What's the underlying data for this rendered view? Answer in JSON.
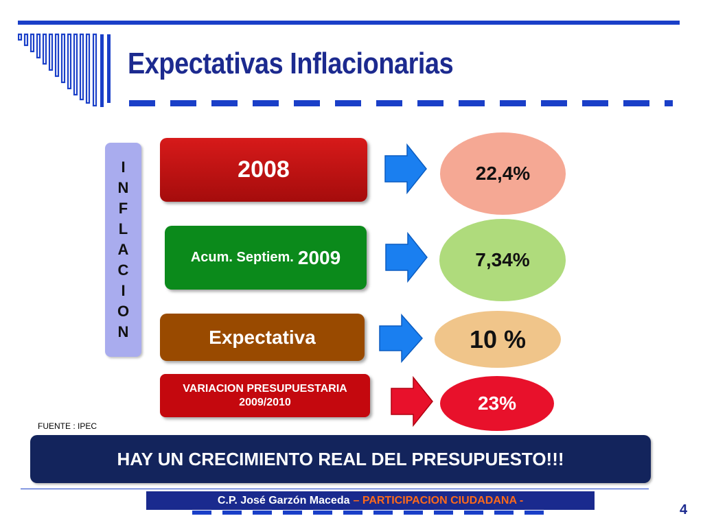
{
  "slide": {
    "title": "Expectativas Inflacionarias",
    "vertical_label": [
      "I",
      "N",
      "F",
      "L",
      "A",
      "C",
      "I",
      "O",
      "N"
    ],
    "rows": [
      {
        "label": "2008",
        "value": "22,4%",
        "arrow_color": "#1a7ff0"
      },
      {
        "label_small": "Acum. Septiem.",
        "label_big": "2009",
        "value": "7,34%",
        "arrow_color": "#1a7ff0"
      },
      {
        "label": "Expectativa",
        "value": "10 %",
        "arrow_color": "#1a7ff0"
      },
      {
        "label_line1": "VARIACION PRESUPUESTARIA",
        "label_line2": "2009/2010",
        "value": "23%",
        "arrow_color": "#e8112b"
      }
    ],
    "source": "FUENTE : IPEC",
    "banner": "HAY UN CRECIMIENTO REAL DEL PRESUPUESTO!!!",
    "footer": {
      "author": "C.P. José Garzón Maceda",
      "tagline": "– PARTICIPACION CIUDADANA -"
    },
    "page_number": "4"
  },
  "colors": {
    "accent_blue": "#1a3fc8",
    "title_blue": "#1c2a8f",
    "row_2008": "#c4080e",
    "row_2009": "#0b8a1b",
    "row_expectativa": "#994a00",
    "footer_accent": "#ff6a1a"
  }
}
